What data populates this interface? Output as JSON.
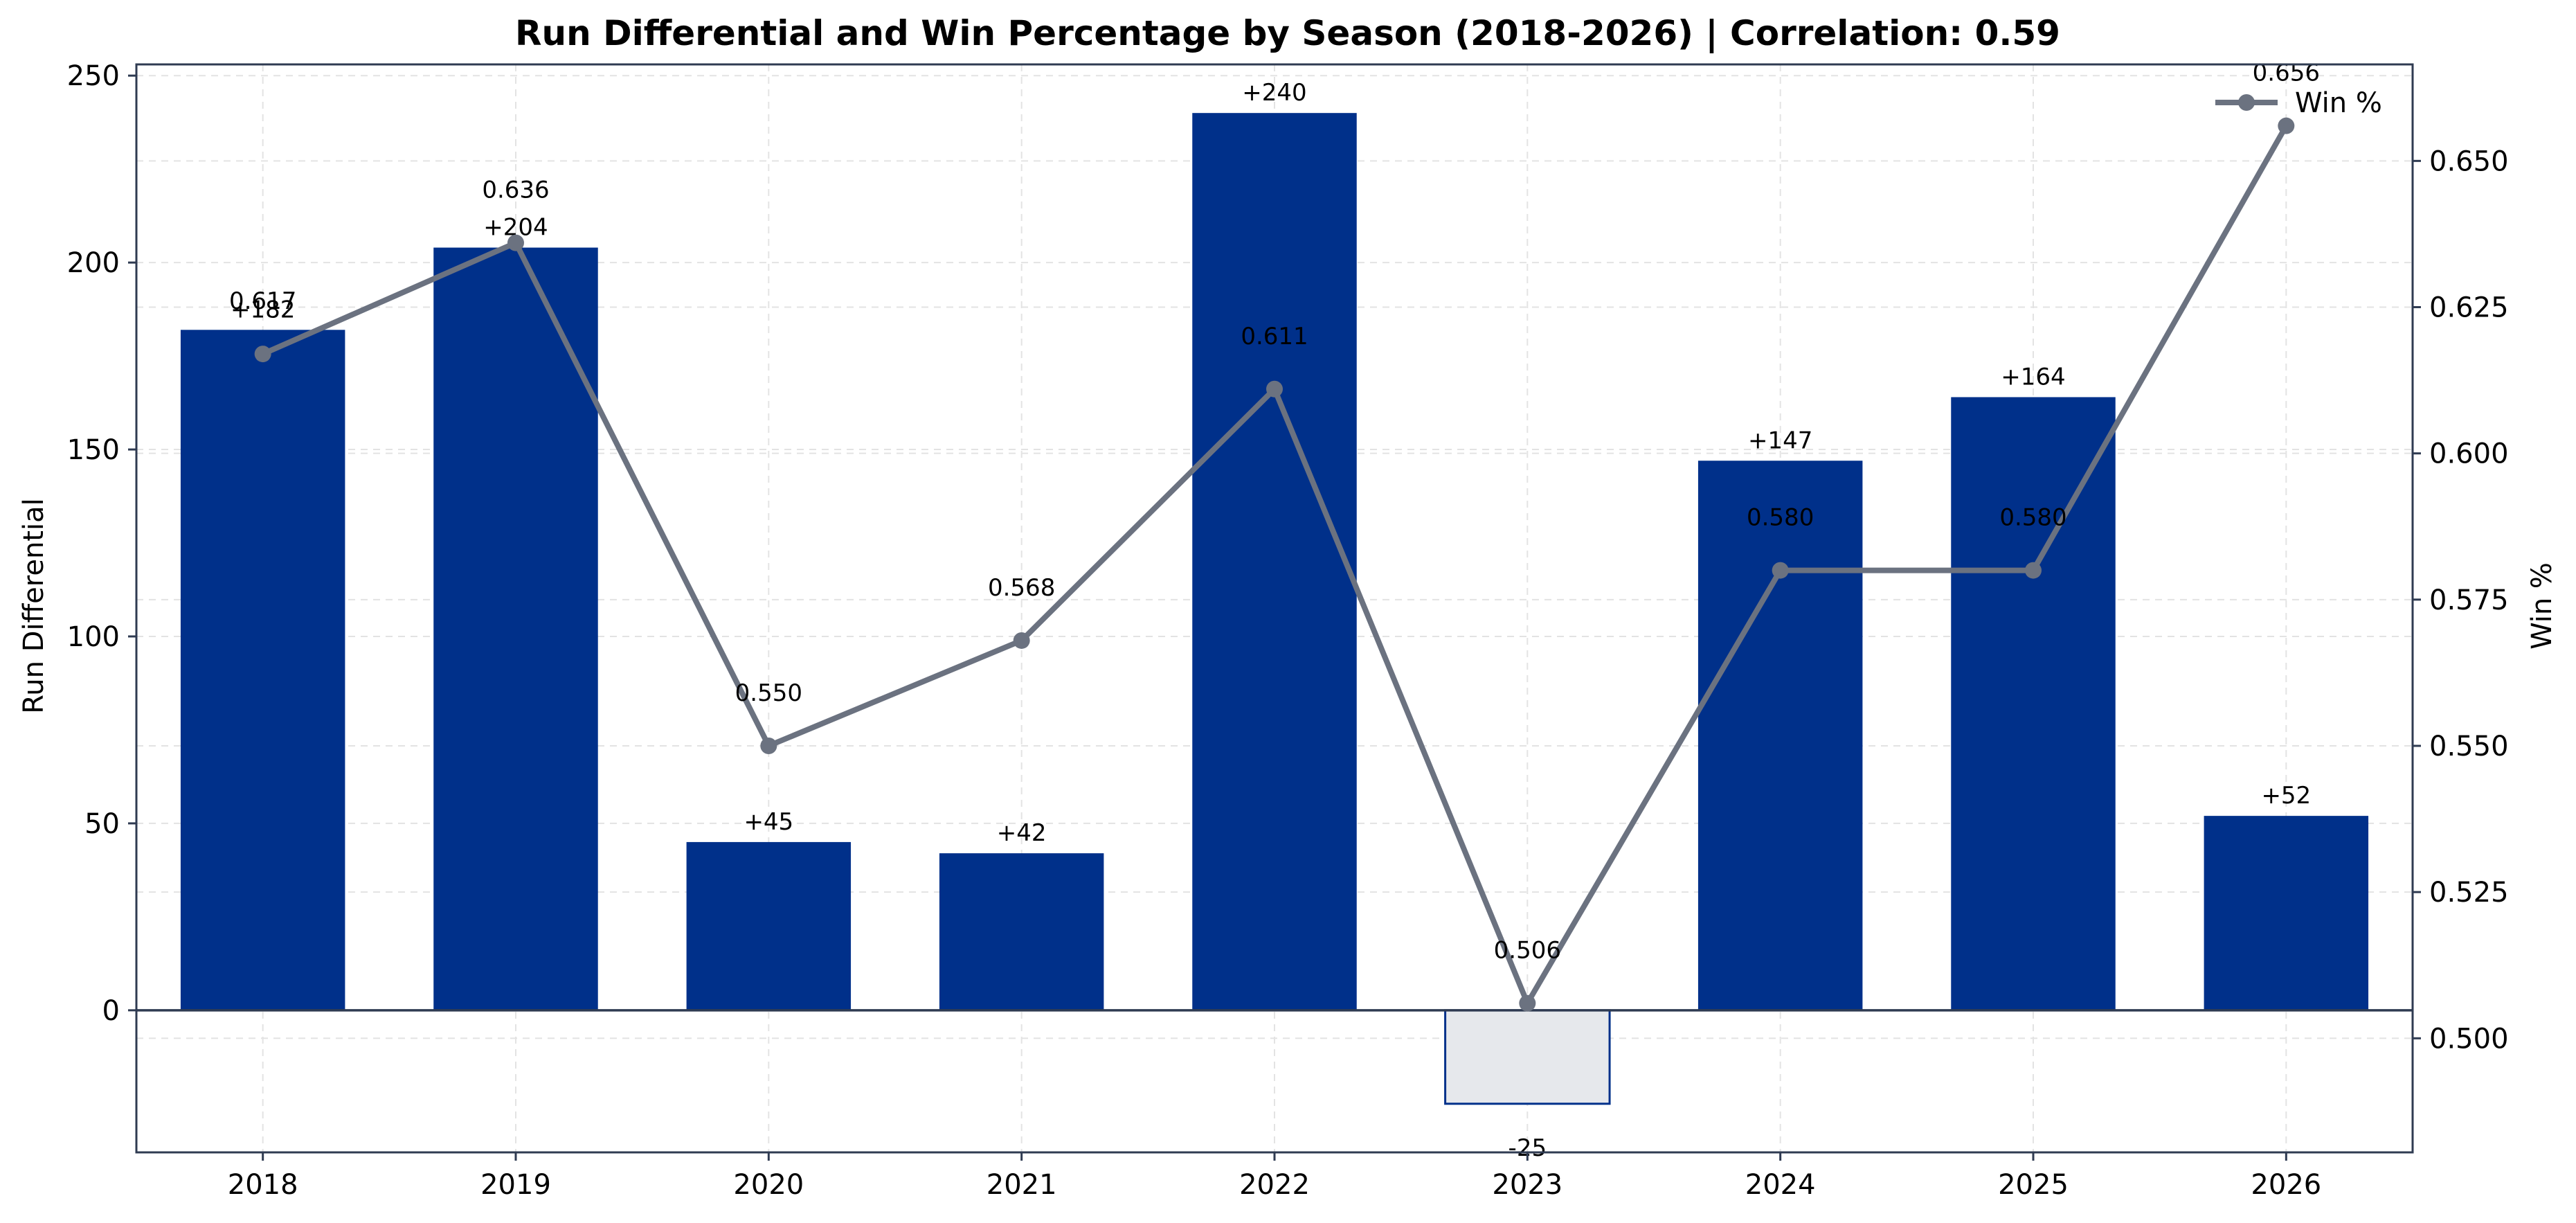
{
  "chart_data": {
    "type": "bar+line",
    "title": "Run Differential and Win Percentage by Season (2018-2026)  |  Correlation: 0.59",
    "categories": [
      "2018",
      "2019",
      "2020",
      "2021",
      "2022",
      "2023",
      "2024",
      "2025",
      "2026"
    ],
    "bar_series": {
      "ylabel": "Run Differential",
      "values": [
        182,
        204,
        45,
        42,
        240,
        -25,
        147,
        164,
        52
      ],
      "labels": [
        "+182",
        "+204",
        "+45",
        "+42",
        "+240",
        "-25",
        "+147",
        "+164",
        "+52"
      ],
      "ylim": [
        -38,
        253
      ],
      "yticks": [
        0,
        50,
        100,
        150,
        200,
        250
      ],
      "positive_color": "#00308A",
      "negative_color": "#E6E8EC",
      "negative_edge_color": "#00308A"
    },
    "line_series": {
      "name": "Win %",
      "ylabel": "Win %",
      "values": [
        0.617,
        0.636,
        0.55,
        0.568,
        0.611,
        0.506,
        0.58,
        0.58,
        0.656
      ],
      "labels": [
        "0.617",
        "0.636",
        "0.550",
        "0.568",
        "0.611",
        "0.506",
        "0.580",
        "0.580",
        "0.656"
      ],
      "ylim": [
        0.4805,
        0.6665
      ],
      "yticks": [
        0.5,
        0.525,
        0.55,
        0.575,
        0.6,
        0.625,
        0.65
      ],
      "ytick_labels": [
        "0.500",
        "0.525",
        "0.550",
        "0.575",
        "0.600",
        "0.625",
        "0.650"
      ],
      "color": "#6B7280"
    },
    "legend": {
      "placement": "top-right",
      "entries": [
        "Win %"
      ]
    },
    "grid": true,
    "zero_line": true,
    "colors": {
      "axis": "#2F3B52",
      "grid": "#E3E3E3"
    }
  }
}
